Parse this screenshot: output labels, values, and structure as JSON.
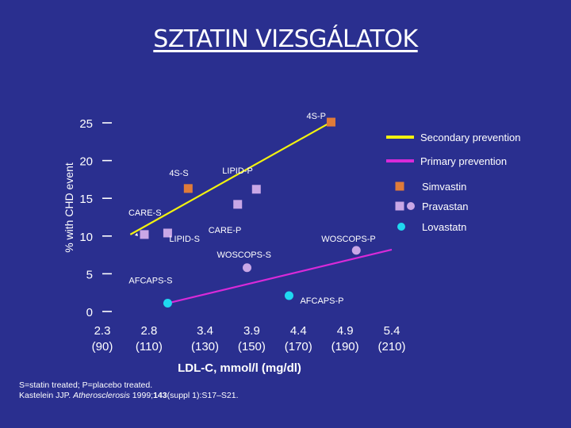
{
  "slide": {
    "title": "SZTATIN VIZSGÁLATOK",
    "footnote_line1": "S=statin treated; P=placebo treated.",
    "footnote_author": "Kastelein JJP. ",
    "footnote_journal": "Atherosclerosis",
    "footnote_year": " 1999;",
    "footnote_volume": "143",
    "footnote_pages": "(suppl 1):S17–S21."
  },
  "chart_data": {
    "type": "scatter",
    "title": "",
    "xlabel": "LDL-C, mmol/l (mg/dl)",
    "ylabel": "% with CHD event",
    "xlim": [
      2.3,
      5.4
    ],
    "ylim": [
      0,
      25
    ],
    "yticks": [
      0,
      5,
      10,
      15,
      20,
      25
    ],
    "xticks": [
      {
        "value": 2.3,
        "label": "2.3",
        "sub": "(90)"
      },
      {
        "value": 2.8,
        "label": "2.8",
        "sub": "(110)"
      },
      {
        "value": 3.4,
        "label": "3.4",
        "sub": "(130)"
      },
      {
        "value": 3.9,
        "label": "3.9",
        "sub": "(150)"
      },
      {
        "value": 4.4,
        "label": "4.4",
        "sub": "(170)"
      },
      {
        "value": 4.9,
        "label": "4.9",
        "sub": "(190)"
      },
      {
        "value": 5.4,
        "label": "5.4",
        "sub": "(210)"
      }
    ],
    "points": [
      {
        "label": "4S-P",
        "x": 4.75,
        "y": 25.1,
        "drug": "Simvastin",
        "marker": "square",
        "color": "#e07b39"
      },
      {
        "label": "4S-S",
        "x": 3.22,
        "y": 16.3,
        "drug": "Simvastin",
        "marker": "square",
        "color": "#e07b39"
      },
      {
        "label": "LIPID-P",
        "x": 3.95,
        "y": 16.2,
        "drug": "Pravastan",
        "marker": "square",
        "color": "#c9a7e6"
      },
      {
        "label": "LIPID-S",
        "x": 3.0,
        "y": 10.4,
        "drug": "Pravastan",
        "marker": "square",
        "color": "#c9a7e6"
      },
      {
        "label": "CARE-P",
        "x": 3.75,
        "y": 14.2,
        "drug": "Pravastan",
        "marker": "square",
        "color": "#c9a7e6"
      },
      {
        "label": "CARE-S",
        "x": 2.75,
        "y": 10.2,
        "drug": "Pravastan",
        "marker": "square",
        "color": "#c9a7e6"
      },
      {
        "label": "WOSCOPS-P",
        "x": 5.02,
        "y": 8.1,
        "drug": "Pravastan",
        "marker": "circle",
        "color": "#c9a7e6"
      },
      {
        "label": "WOSCOPS-S",
        "x": 3.85,
        "y": 5.8,
        "drug": "Pravastan",
        "marker": "circle",
        "color": "#c9a7e6"
      },
      {
        "label": "AFCAPS-P",
        "x": 4.3,
        "y": 2.1,
        "drug": "Lovastatn",
        "marker": "circle",
        "color": "#1fd8f0"
      },
      {
        "label": "AFCAPS-S",
        "x": 3.0,
        "y": 1.1,
        "drug": "Lovastatn",
        "marker": "circle",
        "color": "#1fd8f0"
      }
    ],
    "lines": [
      {
        "name": "Secondary prevention",
        "color": "#f2f20f",
        "from": [
          2.6,
          10.2
        ],
        "to": [
          4.75,
          25.1
        ]
      },
      {
        "name": "Primary prevention",
        "color": "#d82ad8",
        "from": [
          3.0,
          1.1
        ],
        "to": [
          5.4,
          8.2
        ]
      }
    ],
    "legend": [
      {
        "type": "line",
        "label": "Secondary prevention",
        "color": "#f2f20f"
      },
      {
        "type": "line",
        "label": "Primary prevention",
        "color": "#d82ad8"
      },
      {
        "type": "markers",
        "label": "Simvastin",
        "color": "#e07b39",
        "markers": [
          "square"
        ]
      },
      {
        "type": "markers",
        "label": "Pravastan",
        "color": "#c9a7e6",
        "markers": [
          "square",
          "circle"
        ]
      },
      {
        "type": "markers",
        "label": "Lovastatn",
        "color": "#1fd8f0",
        "markers": [
          "circle"
        ]
      }
    ],
    "legend_position": "top-right",
    "grid": false
  }
}
